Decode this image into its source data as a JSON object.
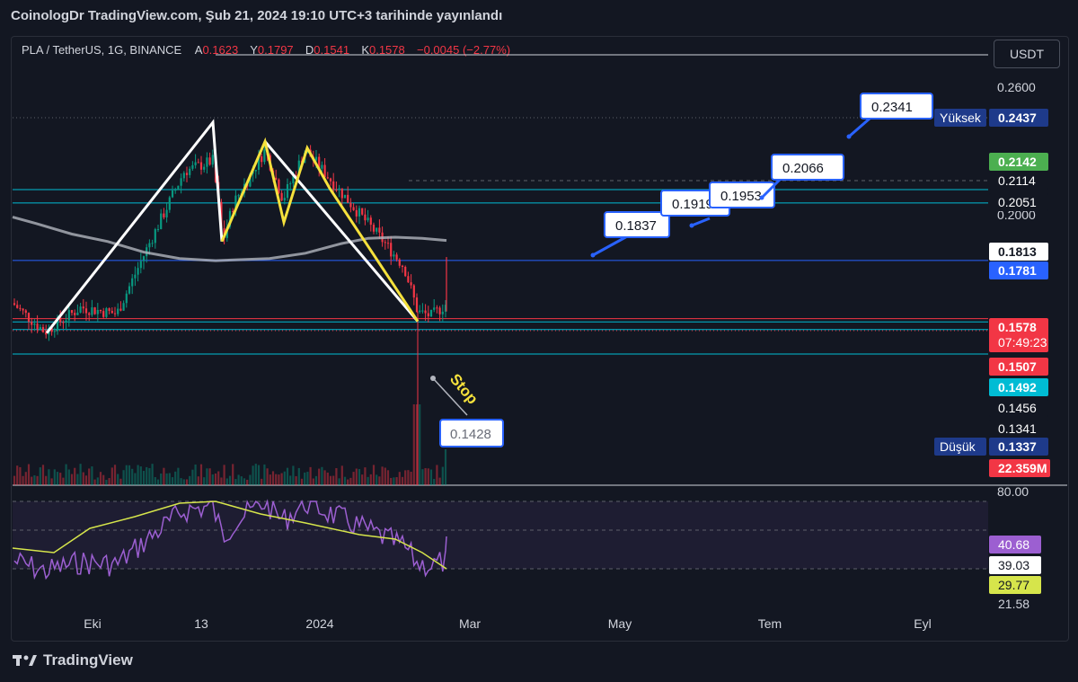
{
  "header": {
    "published": "CoinologDr TradingView.com, Şub 21, 2024 19:10 UTC+3 tarihinde yayınlandı"
  },
  "legend": {
    "symbol": "PLA / TetherUS, 1G, BINANCE",
    "o_label": "A",
    "o_value": "0.1623",
    "h_label": "Y",
    "h_value": "0.1797",
    "l_label": "D",
    "l_value": "0.1541",
    "c_label": "K",
    "c_value": "0.1578",
    "change": "−0.0045 (−2.77%)"
  },
  "currency_button": "USDT",
  "footer": {
    "brand": "TradingView",
    "logo": "tradingview-logo-icon"
  },
  "colors": {
    "background": "#131722",
    "up": "#089981",
    "down": "#f23645",
    "ma": "#9598a1",
    "rsi": "#9c5fd1",
    "rsi_ma": "#d6e54b",
    "pattern": "#ffffff",
    "pattern_yellow": "#f5e13c",
    "cyan": "#00bcd4",
    "blue": "#2962ff",
    "red": "#f23645"
  },
  "chart_data": [
    {
      "type": "candlestick",
      "title": "",
      "x_ticks": [
        "Eki",
        "13",
        "2024",
        "Mar",
        "May",
        "Tem",
        "Eyl"
      ],
      "y_ticks": [
        "0.2600",
        "0.2000"
      ],
      "ylim": [
        0.13,
        0.265
      ],
      "price_labels": [
        {
          "text": "0.2437",
          "prefix": "Yüksek",
          "color": "#1e3a8a"
        },
        {
          "text": "0.2142",
          "color": "#4caf50"
        },
        {
          "text": "0.2114",
          "color": "#131722"
        },
        {
          "text": "0.2051",
          "color": "#131722"
        },
        {
          "text": "0.1813",
          "color": "#ffffff"
        },
        {
          "text": "0.1781",
          "color": "#2962ff"
        },
        {
          "text": "0.1578",
          "sub": "07:49:23",
          "color": "#f23645"
        },
        {
          "text": "0.1507",
          "color": "#f23645"
        },
        {
          "text": "0.1492",
          "color": "#00bcd4"
        },
        {
          "text": "0.1456",
          "color": "#131722"
        },
        {
          "text": "0.1341",
          "color": "#131722"
        },
        {
          "text": "0.1337",
          "prefix": "Düşük",
          "color": "#1e3a8a"
        },
        {
          "text": "22.359M",
          "color": "#f23645"
        }
      ],
      "horizontal_levels": [
        {
          "value": 0.2114,
          "color": "#00bcd4"
        },
        {
          "value": 0.2051,
          "color": "#00bcd4"
        },
        {
          "value": 0.1781,
          "color": "#2962ff"
        },
        {
          "value": 0.1507,
          "color": "#f23645"
        },
        {
          "value": 0.1492,
          "color": "#00bcd4"
        },
        {
          "value": 0.1456,
          "color": "#00bcd4"
        },
        {
          "value": 0.1341,
          "color": "#00bcd4"
        }
      ],
      "targets": [
        "0.1837",
        "0.1919",
        "0.1953",
        "0.2066",
        "0.2341"
      ],
      "stop": {
        "label": "Stop",
        "value": "0.1428"
      },
      "pattern": "head-and-shoulders with zigzag",
      "ma_visible": true,
      "volume_visible": true
    },
    {
      "type": "line",
      "title": "",
      "y_ticks": [
        "80.00"
      ],
      "labels": [
        {
          "text": "40.68",
          "color": "#9c5fd1"
        },
        {
          "text": "39.03",
          "color": "#ffffff"
        },
        {
          "text": "29.77",
          "color": "#d6e54b"
        },
        {
          "text": "21.58",
          "color": "#ffffff"
        }
      ]
    }
  ]
}
